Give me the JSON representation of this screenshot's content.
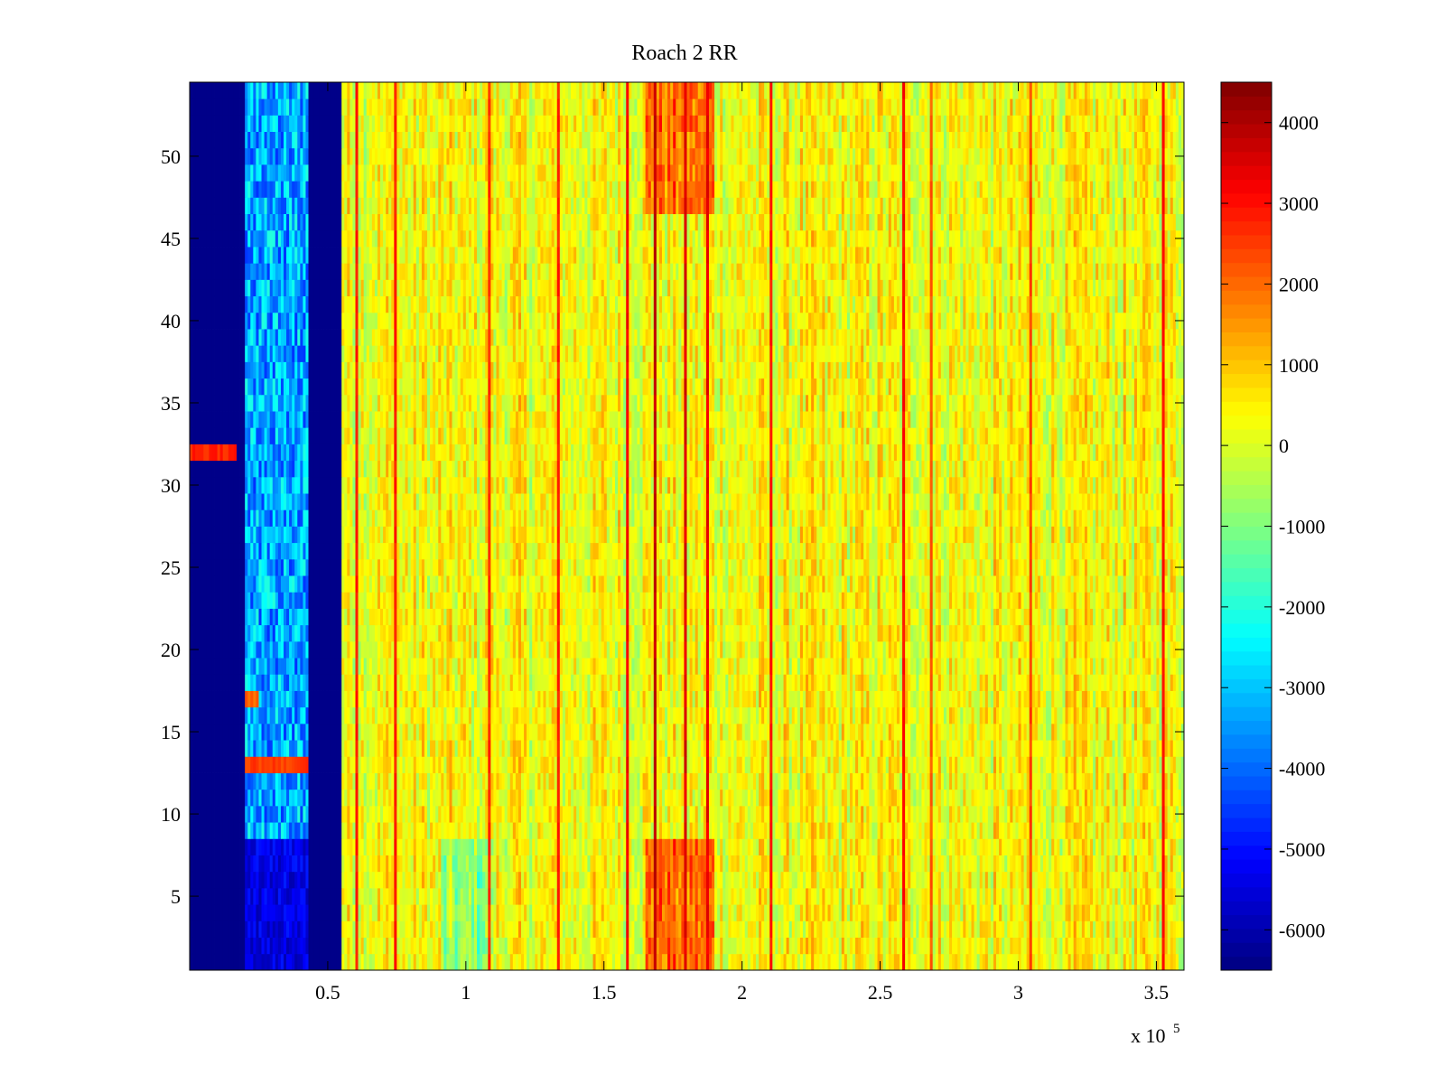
{
  "chart_data": {
    "type": "heatmap",
    "title": "Roach 2 RR",
    "xlabel": "",
    "ylabel": "",
    "x_multiplier_label": "x 10",
    "x_multiplier_exponent": "5",
    "xlim": [
      0,
      3.6
    ],
    "ylim": [
      0.5,
      54.5
    ],
    "x_ticks": [
      0.5,
      1,
      1.5,
      2,
      2.5,
      3,
      3.5
    ],
    "x_tick_labels": [
      "0.5",
      "1",
      "1.5",
      "2",
      "2.5",
      "3",
      "3.5"
    ],
    "y_ticks": [
      5,
      10,
      15,
      20,
      25,
      30,
      35,
      40,
      45,
      50
    ],
    "y_tick_labels": [
      "5",
      "10",
      "15",
      "20",
      "25",
      "30",
      "35",
      "40",
      "45",
      "50"
    ],
    "rows": 54,
    "colormap": "jet",
    "colorbar": {
      "range": [
        -6500,
        4500
      ],
      "ticks": [
        -6000,
        -5000,
        -4000,
        -3000,
        -2000,
        -1000,
        0,
        1000,
        2000,
        3000,
        4000
      ],
      "tick_labels": [
        "-6000",
        "-5000",
        "-4000",
        "-3000",
        "-2000",
        "-1000",
        "0",
        "1000",
        "2000",
        "3000",
        "4000"
      ],
      "levels": 64
    },
    "regions": [
      {
        "x_from": 0.0,
        "x_to": 0.2,
        "value": -6400,
        "note": "dark blue band"
      },
      {
        "x_from": 0.2,
        "x_to": 0.43,
        "value": -4200,
        "note": "mottled blue/cyan, rows 9-54"
      },
      {
        "x_from": 0.43,
        "x_to": 0.55,
        "value": -6400,
        "note": "dark blue band"
      },
      {
        "x_from": 0.55,
        "x_to": 3.6,
        "value": 300,
        "note": "yellow/green/orange striped"
      }
    ],
    "highlights": [
      {
        "row": 32,
        "x_from": 0.0,
        "x_to": 0.17,
        "value": 2800
      },
      {
        "row": 13,
        "x_from": 0.2,
        "x_to": 0.43,
        "value": 2500
      },
      {
        "row": 17,
        "x_from": 0.2,
        "x_to": 0.25,
        "value": 2000
      }
    ],
    "vertical_stripes": [
      {
        "x": 0.6,
        "value": 2800
      },
      {
        "x": 0.74,
        "value": 2800
      },
      {
        "x": 1.08,
        "value": 2600
      },
      {
        "x": 1.33,
        "value": 2800
      },
      {
        "x": 1.58,
        "value": 3200
      },
      {
        "x": 1.68,
        "value": 3800
      },
      {
        "x": 1.79,
        "value": 3500
      },
      {
        "x": 1.87,
        "value": 3300
      },
      {
        "x": 2.1,
        "value": 2900
      },
      {
        "x": 2.58,
        "value": 3000
      },
      {
        "x": 2.68,
        "value": 2200
      },
      {
        "x": 3.04,
        "value": 2400
      },
      {
        "x": 3.52,
        "value": 3000
      }
    ]
  }
}
